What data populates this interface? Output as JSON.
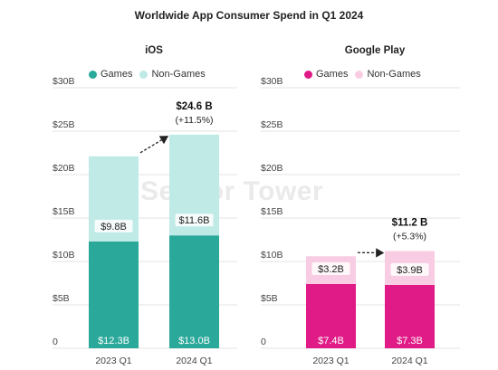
{
  "title": "Worldwide App Consumer Spend in Q1 2024",
  "watermark": "Sensor Tower",
  "colors": {
    "ios_games": "#2aa89a",
    "ios_nongames": "#bfeae5",
    "gp_games": "#e01a86",
    "gp_nongames": "#f8cde3",
    "grid": "#e3e3e3",
    "axis_text": "#444444",
    "bar_label": "#ffffff",
    "inner_label": "#222222"
  },
  "chart_data": [
    {
      "type": "bar",
      "stacked": true,
      "title": "iOS",
      "categories": [
        "2023 Q1",
        "2024 Q1"
      ],
      "series": [
        {
          "name": "Games",
          "values": [
            12.3,
            13.0
          ],
          "labels": [
            "$12.3B",
            "$13.0B"
          ]
        },
        {
          "name": "Non-Games",
          "values": [
            9.8,
            11.6
          ],
          "labels": [
            "$9.8B",
            "$11.6B"
          ]
        }
      ],
      "ylim": [
        0,
        30
      ],
      "yticks": [
        "0",
        "$5B",
        "$10B",
        "$15B",
        "$20B",
        "$25B",
        "$30B"
      ],
      "ytick_values": [
        0,
        5,
        10,
        15,
        20,
        25,
        30
      ],
      "grid": true,
      "legend_position": "top",
      "annotation": {
        "total": "$24.6 B",
        "change": "(+11.5%)",
        "from_value": 22.1,
        "to_value": 24.6
      }
    },
    {
      "type": "bar",
      "stacked": true,
      "title": "Google Play",
      "categories": [
        "2023 Q1",
        "2024 Q1"
      ],
      "series": [
        {
          "name": "Games",
          "values": [
            7.4,
            7.3
          ],
          "labels": [
            "$7.4B",
            "$7.3B"
          ]
        },
        {
          "name": "Non-Games",
          "values": [
            3.2,
            3.9
          ],
          "labels": [
            "$3.2B",
            "$3.9B"
          ]
        }
      ],
      "ylim": [
        0,
        30
      ],
      "yticks": [
        "0",
        "$5B",
        "$10B",
        "$15B",
        "$20B",
        "$25B",
        "$30B"
      ],
      "ytick_values": [
        0,
        5,
        10,
        15,
        20,
        25,
        30
      ],
      "grid": true,
      "legend_position": "top",
      "annotation": {
        "total": "$11.2 B",
        "change": "(+5.3%)",
        "from_value": 10.6,
        "to_value": 11.2
      }
    }
  ]
}
